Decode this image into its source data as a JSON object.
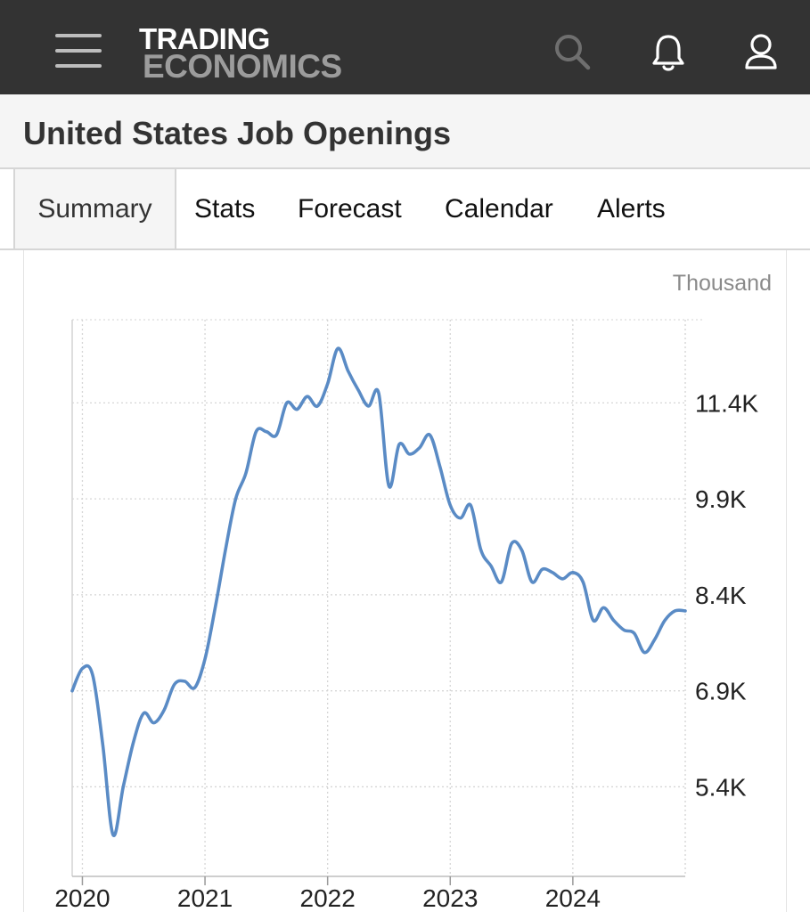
{
  "header": {
    "logo_line1": "TRADING",
    "logo_line2": "ECONOMICS",
    "icons": [
      "menu-icon",
      "search-icon",
      "bell-icon",
      "user-icon"
    ],
    "background_color": "#333333"
  },
  "page": {
    "title": "United States Job Openings"
  },
  "tabs": [
    {
      "label": "Summary",
      "active": true
    },
    {
      "label": "Stats",
      "active": false
    },
    {
      "label": "Forecast",
      "active": false
    },
    {
      "label": "Calendar",
      "active": false
    },
    {
      "label": "Alerts",
      "active": false
    }
  ],
  "chart_data": {
    "type": "line",
    "title": "",
    "xlabel": "",
    "ylabel": "",
    "unit": "Thousand",
    "x_tick_labels": [
      "2020",
      "2021",
      "2022",
      "2023",
      "2024"
    ],
    "y_tick_labels": [
      "5.4K",
      "6.9K",
      "8.4K",
      "9.9K",
      "11.4K"
    ],
    "y_ticks": [
      5400,
      6900,
      8400,
      9900,
      11400
    ],
    "ylim": [
      4000,
      12700
    ],
    "xlim": [
      "2019-12",
      "2024-12"
    ],
    "y_axis_position": "right",
    "grid": true,
    "line_color": "#5a8bc5",
    "series": [
      {
        "x": [
          "2019-12",
          "2020-01",
          "2020-02",
          "2020-03",
          "2020-04",
          "2020-05",
          "2020-06",
          "2020-07",
          "2020-08",
          "2020-09",
          "2020-10",
          "2020-11",
          "2020-12",
          "2021-01",
          "2021-02",
          "2021-03",
          "2021-04",
          "2021-05",
          "2021-06",
          "2021-07",
          "2021-08",
          "2021-09",
          "2021-10",
          "2021-11",
          "2021-12",
          "2022-01",
          "2022-02",
          "2022-03",
          "2022-04",
          "2022-05",
          "2022-06",
          "2022-07",
          "2022-08",
          "2022-09",
          "2022-10",
          "2022-11",
          "2022-12",
          "2023-01",
          "2023-02",
          "2023-03",
          "2023-04",
          "2023-05",
          "2023-06",
          "2023-07",
          "2023-08",
          "2023-09",
          "2023-10",
          "2023-11",
          "2023-12",
          "2024-01",
          "2024-02",
          "2024-03",
          "2024-04",
          "2024-05",
          "2024-06",
          "2024-07",
          "2024-08",
          "2024-09",
          "2024-10",
          "2024-11",
          "2024-12"
        ],
        "values": [
          6900,
          7250,
          7150,
          6050,
          4650,
          5400,
          6100,
          6550,
          6400,
          6600,
          7000,
          7050,
          6950,
          7400,
          8200,
          9100,
          9900,
          10300,
          10950,
          10950,
          10900,
          11400,
          11300,
          11500,
          11350,
          11700,
          12250,
          11900,
          11600,
          11350,
          11550,
          10100,
          10750,
          10600,
          10700,
          10900,
          10400,
          9800,
          9600,
          9800,
          9100,
          8850,
          8600,
          9200,
          9100,
          8600,
          8800,
          8750,
          8650,
          8750,
          8600,
          8000,
          8200,
          8000,
          7850,
          7800,
          7500,
          7700,
          8000,
          8150,
          8150
        ]
      }
    ]
  }
}
